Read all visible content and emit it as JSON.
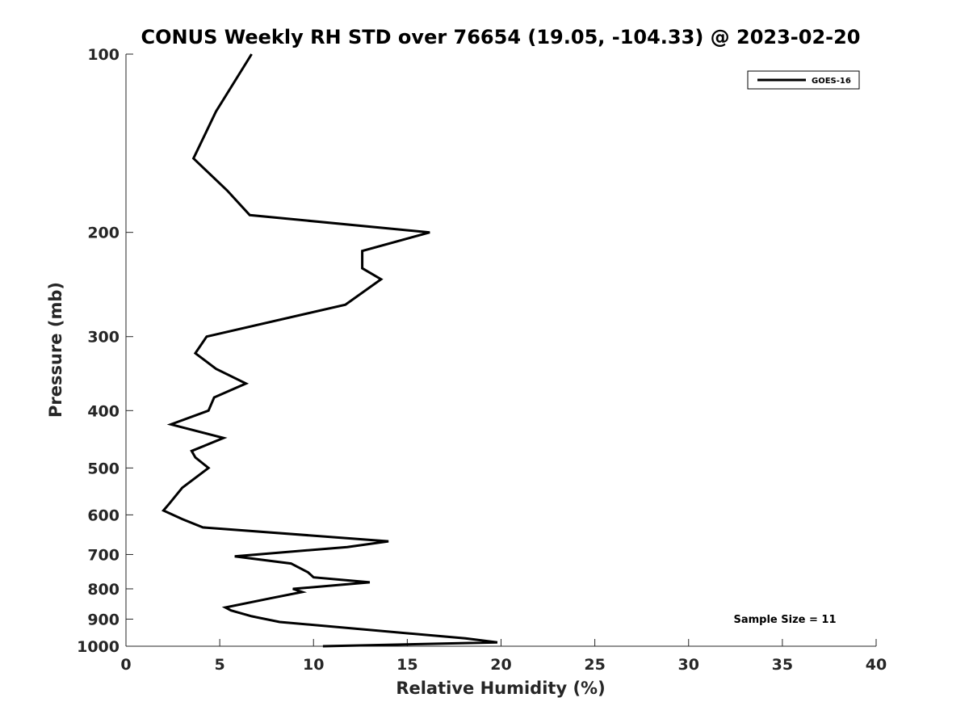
{
  "chart_data": {
    "type": "line",
    "title": "CONUS Weekly RH STD over 76654 (19.05, -104.33) @ 2023-02-20",
    "xlabel": "Relative Humidity (%)",
    "ylabel": "Pressure (mb)",
    "xlim": [
      0,
      40
    ],
    "ylim": [
      100,
      1000
    ],
    "y_scale": "log",
    "y_reversed": true,
    "x_ticks": [
      0,
      5,
      10,
      15,
      20,
      25,
      30,
      35,
      40
    ],
    "y_ticks": [
      100,
      200,
      300,
      400,
      500,
      600,
      700,
      800,
      900,
      1000
    ],
    "grid": false,
    "legend_position": "top-right",
    "annotation": "Sample Size = 11",
    "series": [
      {
        "name": "GOES-16",
        "color": "#000000",
        "points": [
          [
            6.7,
            100
          ],
          [
            4.8,
            125
          ],
          [
            3.6,
            150
          ],
          [
            5.4,
            170
          ],
          [
            6.6,
            187
          ],
          [
            16.2,
            200
          ],
          [
            12.6,
            215
          ],
          [
            12.6,
            230
          ],
          [
            13.6,
            240
          ],
          [
            11.7,
            265
          ],
          [
            4.3,
            300
          ],
          [
            3.7,
            320
          ],
          [
            4.8,
            340
          ],
          [
            6.4,
            360
          ],
          [
            4.7,
            380
          ],
          [
            4.4,
            400
          ],
          [
            2.4,
            422
          ],
          [
            5.2,
            445
          ],
          [
            3.5,
            468
          ],
          [
            3.7,
            480
          ],
          [
            4.4,
            500
          ],
          [
            3.0,
            540
          ],
          [
            2.3,
            575
          ],
          [
            2.0,
            590
          ],
          [
            3.0,
            610
          ],
          [
            4.1,
            630
          ],
          [
            14.0,
            665
          ],
          [
            11.8,
            680
          ],
          [
            5.8,
            705
          ],
          [
            8.8,
            725
          ],
          [
            9.7,
            750
          ],
          [
            10.0,
            765
          ],
          [
            13.0,
            780
          ],
          [
            8.9,
            800
          ],
          [
            9.4,
            810
          ],
          [
            7.7,
            830
          ],
          [
            5.3,
            860
          ],
          [
            5.6,
            870
          ],
          [
            6.7,
            890
          ],
          [
            8.2,
            910
          ],
          [
            18.1,
            970
          ],
          [
            19.8,
            985
          ],
          [
            10.5,
            1000
          ]
        ]
      }
    ]
  }
}
